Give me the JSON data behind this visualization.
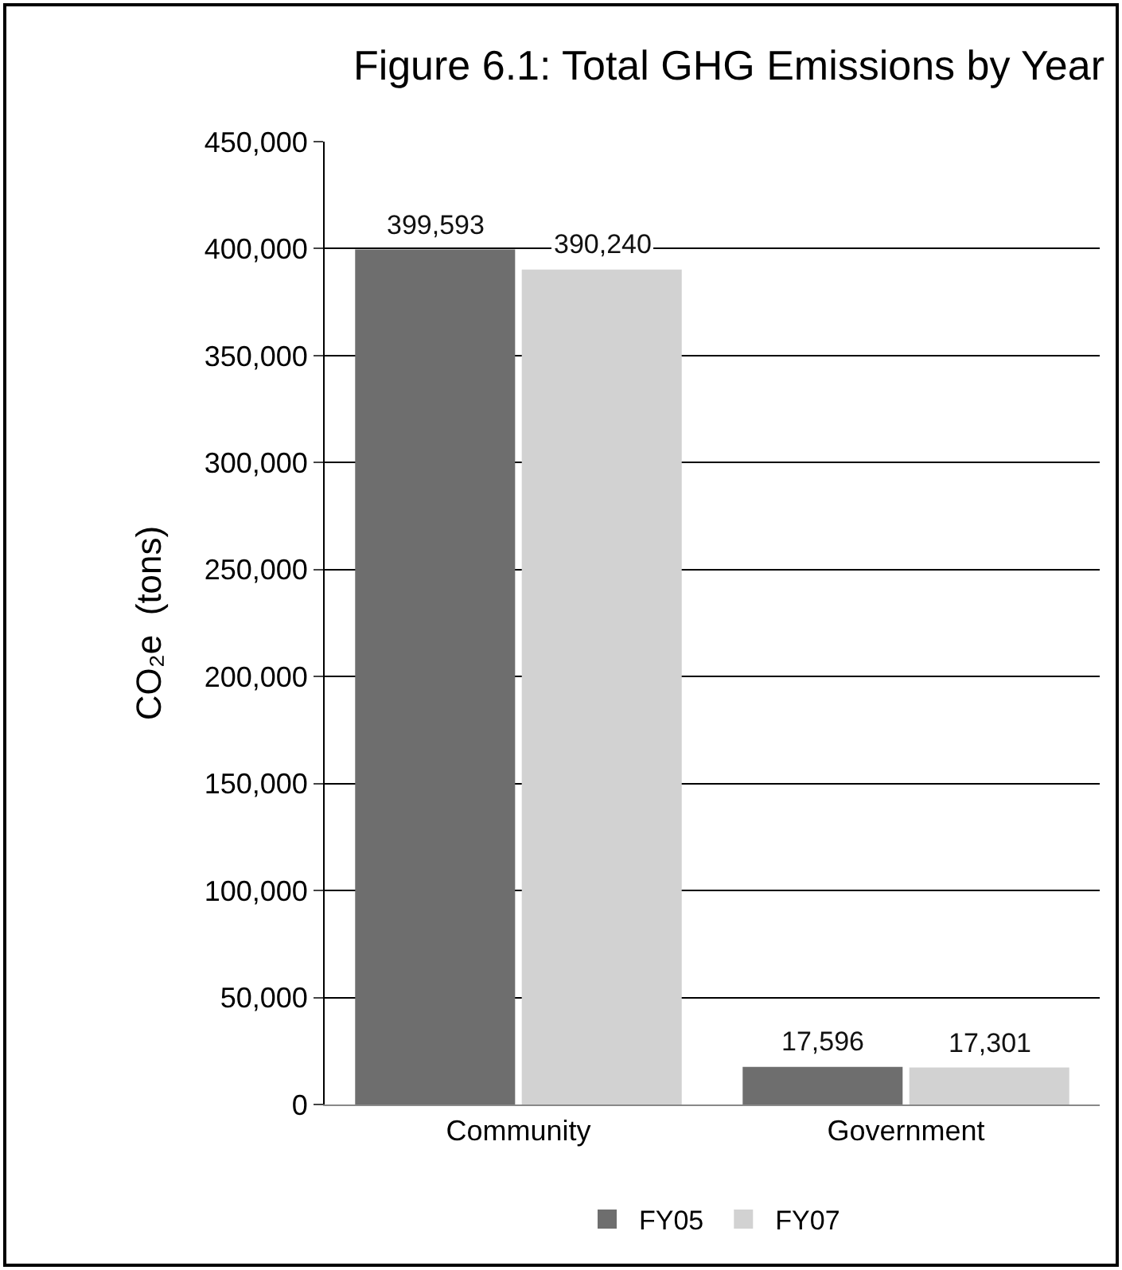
{
  "chart_data": {
    "type": "bar",
    "title": "Figure 6.1: Total GHG Emissions by Year",
    "ylabel": "CO₂e  (tons)",
    "categories": [
      "Community",
      "Government"
    ],
    "series": [
      {
        "name": "FY05",
        "color": "#6e6e6e",
        "values": [
          399593,
          17596
        ],
        "value_labels": [
          "399,593",
          "17,596"
        ]
      },
      {
        "name": "FY07",
        "color": "#d2d2d2",
        "values": [
          390240,
          17301
        ],
        "value_labels": [
          "390,240",
          "17,301"
        ]
      }
    ],
    "ylim": [
      0,
      450000
    ],
    "yticks": [
      0,
      {
        "value": 50000,
        "label": "50,000"
      },
      {
        "value": 100000,
        "label": "100,000"
      },
      {
        "value": 150000,
        "label": "150,000"
      },
      {
        "value": 200000,
        "label": "200,000"
      },
      {
        "value": 250000,
        "label": "250,000"
      },
      {
        "value": 300000,
        "label": "300,000"
      },
      {
        "value": 350000,
        "label": "350,000"
      },
      {
        "value": 400000,
        "label": "400,000"
      },
      {
        "value": 450000,
        "label": "450,000"
      }
    ],
    "grid": "y",
    "legend": "bottom"
  }
}
